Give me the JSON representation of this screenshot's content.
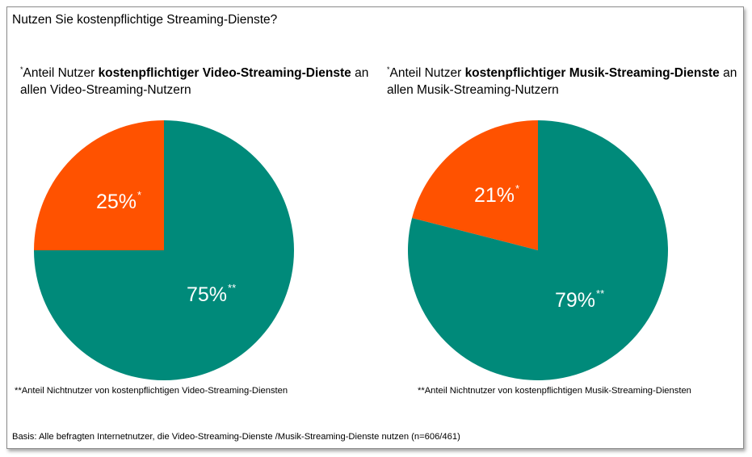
{
  "title": "Nutzen Sie kostenpflichtige Streaming-Dienste?",
  "colors": {
    "paid": "#ff5200",
    "unpaid": "#008a7a"
  },
  "charts": [
    {
      "subtitle_star": "*",
      "subtitle_pre": "Anteil Nutzer ",
      "subtitle_bold": "kostenpflichtiger Video-Streaming-Dienste",
      "subtitle_post": " an allen Video-Streaming-Nutzern",
      "footnote": "**Anteil Nichtnutzer von kostenpflichtigen Video-Streaming-Diensten"
    },
    {
      "subtitle_star": "*",
      "subtitle_pre": "Anteil Nutzer ",
      "subtitle_bold": "kostenpflichtiger Musik-Streaming-Dienste",
      "subtitle_post": " an allen Musik-Streaming-Nutzern",
      "footnote": "**Anteil Nichtnutzer von kostenpflichtigen Musik-Streaming-Diensten"
    }
  ],
  "basis": "Basis: Alle befragten Internetnutzer, die Video-Streaming-Dienste /Musik-Streaming-Dienste nutzen (n=606/461)",
  "chart_data": [
    {
      "type": "pie",
      "title": "Anteil Nutzer kostenpflichtiger Video-Streaming-Dienste an allen Video-Streaming-Nutzern",
      "slices": [
        {
          "value": 25,
          "label": "25%",
          "marker": "*"
        },
        {
          "value": 75,
          "label": "75%",
          "marker": "**"
        }
      ]
    },
    {
      "type": "pie",
      "title": "Anteil Nutzer kostenpflichtiger Musik-Streaming-Dienste an allen Musik-Streaming-Nutzern",
      "slices": [
        {
          "value": 21,
          "label": "21%",
          "marker": "*"
        },
        {
          "value": 79,
          "label": "79%",
          "marker": "**"
        }
      ]
    }
  ]
}
